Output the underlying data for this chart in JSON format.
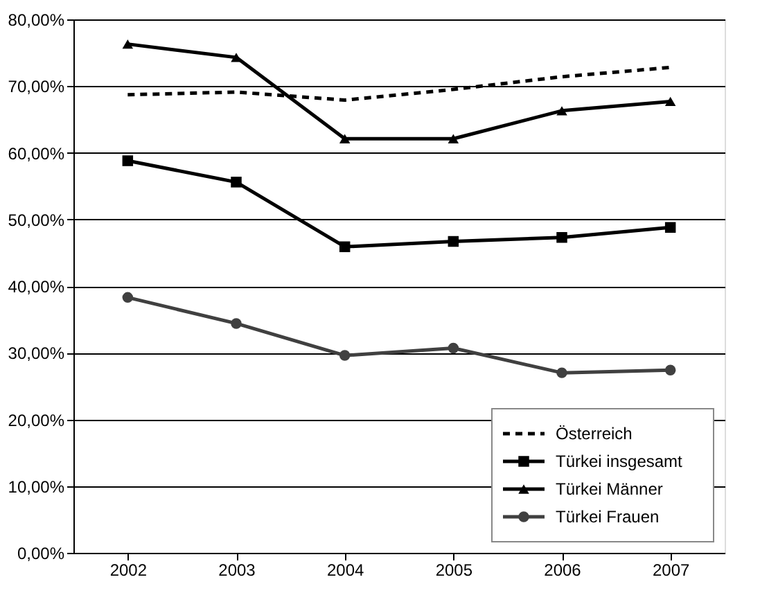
{
  "chart_data": {
    "type": "line",
    "categories": [
      "2002",
      "2003",
      "2004",
      "2005",
      "2006",
      "2007"
    ],
    "series": [
      {
        "name": "Österreich",
        "color": "#000000",
        "line_style": "dashed",
        "marker": "none",
        "values": [
          68.7,
          69.1,
          67.9,
          69.5,
          71.4,
          72.8
        ]
      },
      {
        "name": "Türkei insgesamt",
        "color": "#000000",
        "line_style": "solid",
        "marker": "square",
        "values": [
          58.8,
          55.6,
          45.9,
          46.7,
          47.3,
          48.8
        ]
      },
      {
        "name": "Türkei Männer",
        "color": "#000000",
        "line_style": "solid",
        "marker": "triangle",
        "values": [
          76.3,
          74.3,
          62.1,
          62.1,
          66.3,
          67.7
        ]
      },
      {
        "name": "Türkei Frauen",
        "color": "#404040",
        "line_style": "solid",
        "marker": "circle",
        "values": [
          38.3,
          34.4,
          29.6,
          30.7,
          27.0,
          27.4
        ]
      }
    ],
    "ylim": [
      0,
      80
    ],
    "yticks": [
      {
        "value": 0,
        "label": "0,00%"
      },
      {
        "value": 10,
        "label": "10,00%"
      },
      {
        "value": 20,
        "label": "20,00%"
      },
      {
        "value": 30,
        "label": "30,00%"
      },
      {
        "value": 40,
        "label": "40,00%"
      },
      {
        "value": 50,
        "label": "50,00%"
      },
      {
        "value": 60,
        "label": "60,00%"
      },
      {
        "value": 70,
        "label": "70,00%"
      },
      {
        "value": 80,
        "label": "80,00%"
      }
    ],
    "grid": "y",
    "legend": "bottom right"
  }
}
